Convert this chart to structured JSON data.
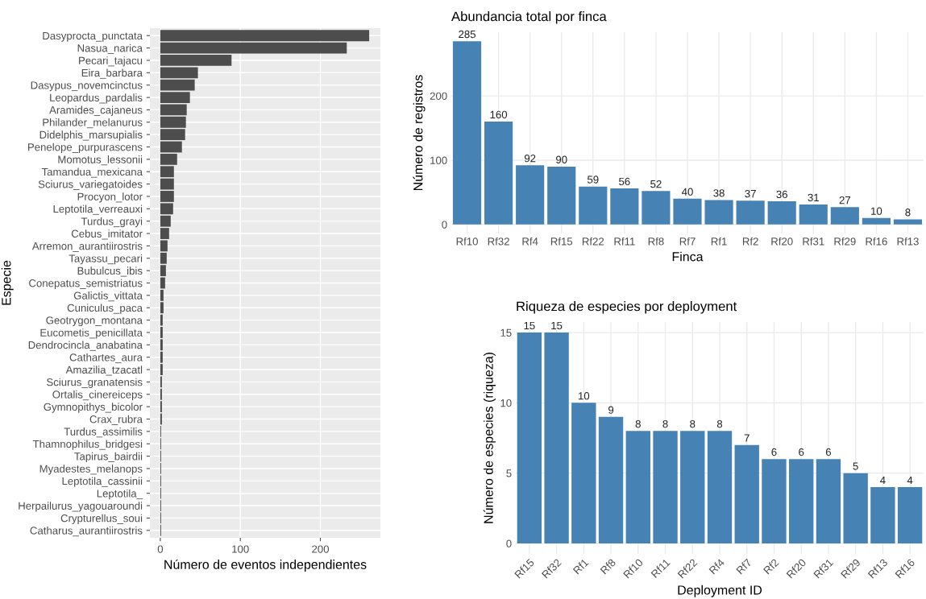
{
  "chart_data": [
    {
      "type": "bar",
      "orientation": "horizontal",
      "ylabel": "Especie",
      "xlabel": "Número de eventos independientes",
      "categories": [
        "Dasyprocta_punctata",
        "Nasua_narica",
        "Pecari_tajacu",
        "Eira_barbara",
        "Dasypus_novemcinctus",
        "Leopardus_pardalis",
        "Aramides_cajaneus",
        "Philander_melanurus",
        "Didelphis_marsupialis",
        "Penelope_purpurascens",
        "Momotus_lessonii",
        "Tamandua_mexicana",
        "Sciurus_variegatoides",
        "Procyon_lotor",
        "Leptotila_verreauxi",
        "Turdus_grayi",
        "Cebus_imitator",
        "Arremon_aurantiirostris",
        "Tayassu_pecari",
        "Bubulcus_ibis",
        "Conepatus_semistriatus",
        "Galictis_vittata",
        "Cuniculus_paca",
        "Geotrygon_montana",
        "Eucometis_penicillata",
        "Dendrocincla_anabatina",
        "Cathartes_aura",
        "Amazilia_tzacatl",
        "Sciurus_granatensis",
        "Ortalis_cinereiceps",
        "Gymnopithys_bicolor",
        "Crax_rubra",
        "Turdus_assimilis",
        "Thamnophilus_bridgesi",
        "Tapirus_bairdii",
        "Myadestes_melanops",
        "Leptotila_cassinii",
        "Leptotila_",
        "Herpailurus_yagouaroundi",
        "Crypturellus_soui",
        "Catharus_aurantiirostris"
      ],
      "values": [
        261,
        233,
        89,
        47,
        43,
        37,
        33,
        32,
        31,
        27,
        21,
        17,
        17,
        17,
        16,
        13,
        11,
        9,
        8,
        7,
        6,
        4,
        4,
        3,
        3,
        3,
        3,
        3,
        2,
        2,
        2,
        2,
        1,
        1,
        1,
        1,
        1,
        1,
        1,
        1,
        1
      ],
      "color": "#4d4d4d",
      "xlim": [
        -13,
        275
      ],
      "xticks": [
        0,
        100,
        200
      ],
      "grid": true
    },
    {
      "type": "bar",
      "title": "Abundancia total por finca",
      "xlabel": "Finca",
      "ylabel": "Número de registros",
      "categories": [
        "Rf10",
        "Rf32",
        "Rf4",
        "Rf15",
        "Rf22",
        "Rf11",
        "Rf8",
        "Rf7",
        "Rf1",
        "Rf2",
        "Rf20",
        "Rf31",
        "Rf29",
        "Rf16",
        "Rf13"
      ],
      "values": [
        285,
        160,
        92,
        90,
        59,
        56,
        52,
        40,
        38,
        37,
        36,
        31,
        27,
        10,
        8
      ],
      "color": "#4682b4",
      "ylim": [
        -14,
        299
      ],
      "yticks": [
        0,
        100,
        200
      ],
      "grid": true,
      "data_labels": true
    },
    {
      "type": "bar",
      "title": "Riqueza de especies por deployment",
      "xlabel": "Deployment ID",
      "ylabel": "Número de especies (riqueza)",
      "categories": [
        "Rf15",
        "Rf32",
        "Rf1",
        "Rf8",
        "Rf10",
        "Rf11",
        "Rf22",
        "Rf4",
        "Rf7",
        "Rf2",
        "Rf20",
        "Rf31",
        "Rf29",
        "Rf13",
        "Rf16"
      ],
      "values": [
        15,
        15,
        10,
        9,
        8,
        8,
        8,
        8,
        7,
        6,
        6,
        6,
        5,
        4,
        4
      ],
      "color": "#4682b4",
      "ylim": [
        -0.75,
        15.75
      ],
      "yticks": [
        0,
        5,
        10,
        15
      ],
      "grid": true,
      "data_labels": true
    }
  ]
}
